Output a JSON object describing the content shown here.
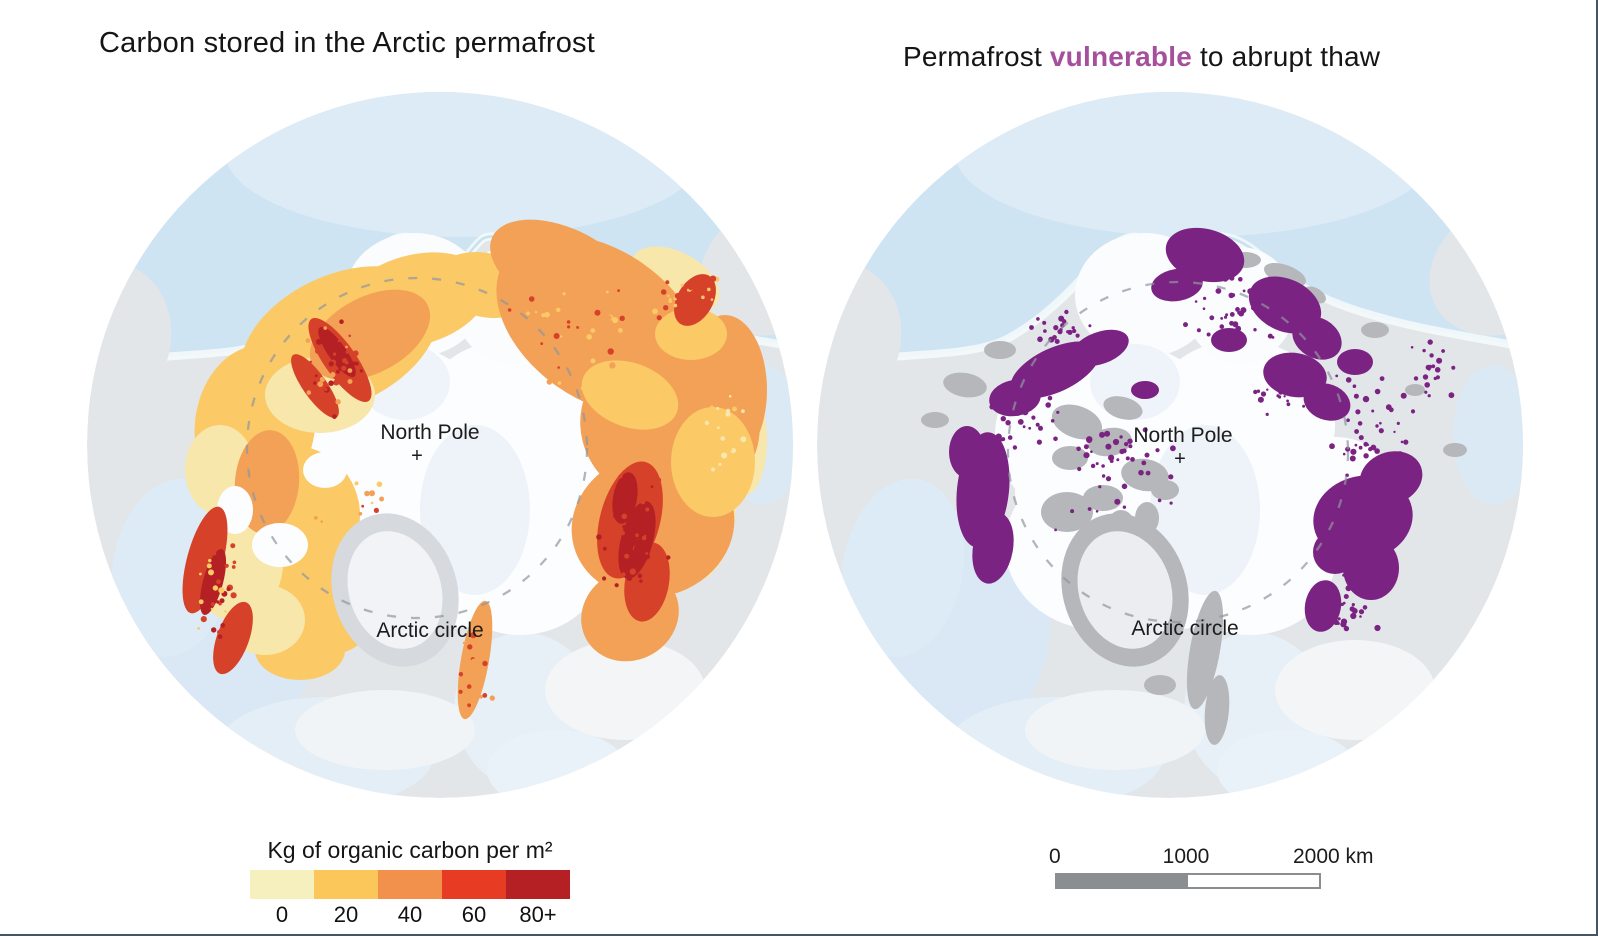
{
  "page": {
    "background": "#ffffff",
    "frame_border_color": "#46555f"
  },
  "left_map": {
    "title": "Carbon stored in the Arctic permafrost",
    "north_pole_label": "North Pole",
    "pole_marker": "+",
    "arctic_circle_label": "Arctic circle",
    "legend": {
      "title": "Kg of organic carbon per m²",
      "bins": [
        {
          "label": "0",
          "color": "#f6efbe"
        },
        {
          "label": "20",
          "color": "#fbc75b"
        },
        {
          "label": "40",
          "color": "#f2914c"
        },
        {
          "label": "60",
          "color": "#e83b24"
        },
        {
          "label": "80+",
          "color": "#b52025"
        }
      ]
    }
  },
  "right_map": {
    "title_prefix": "Permafrost ",
    "title_accent": "vulnerable",
    "title_suffix": " to abrupt thaw",
    "accent_color": "#a4509c",
    "vulnerable_patch_color": "#7b2383",
    "north_pole_label": "North Pole",
    "pole_marker": "+",
    "arctic_circle_label": "Arctic circle",
    "scale_bar": {
      "tick_labels": [
        "0",
        "1000",
        "2000 km"
      ],
      "total_km": 2000
    }
  },
  "base_colors": {
    "ocean_blue": "#cfe4f2",
    "land_gray": "#e3e6e9",
    "snow_white": "#fcfdff",
    "rocky_gray": "#b5b7bb",
    "dash_gray": "#9096a0"
  }
}
